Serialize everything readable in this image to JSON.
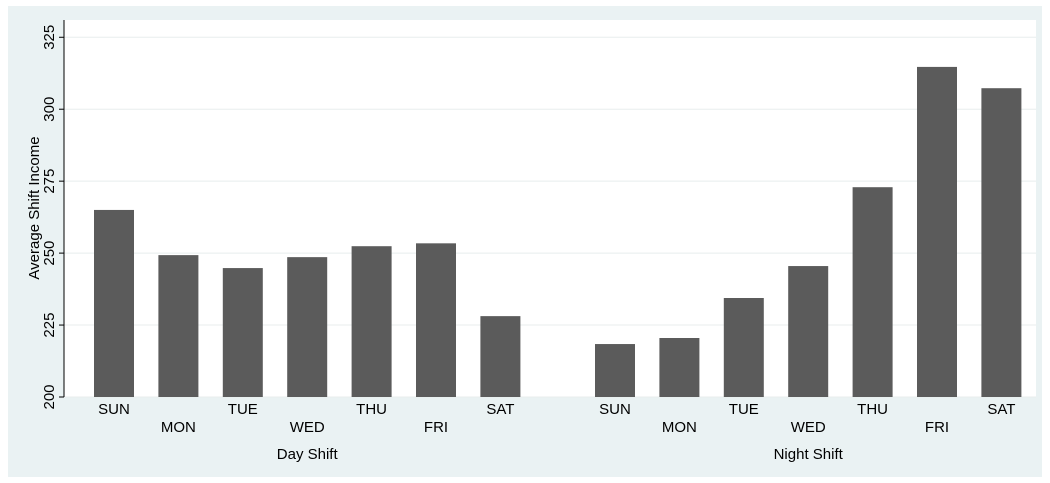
{
  "chart_data": {
    "type": "bar",
    "y_label": "Average Shift Income",
    "groups": [
      {
        "name": "Day Shift",
        "categories": [
          "SUN",
          "MON",
          "TUE",
          "WED",
          "THU",
          "FRI",
          "SAT"
        ],
        "values": [
          265,
          249.3,
          244.8,
          248.6,
          252.4,
          253.4,
          228.1
        ]
      },
      {
        "name": "Night Shift",
        "categories": [
          "SUN",
          "MON",
          "TUE",
          "WED",
          "THU",
          "FRI",
          "SAT"
        ],
        "values": [
          218.4,
          220.5,
          234.4,
          245.5,
          272.9,
          314.7,
          307.3
        ]
      }
    ],
    "color": "#5b5b5b",
    "ylim": [
      200,
      331
    ],
    "yticks": [
      200,
      225,
      250,
      275,
      300,
      325
    ],
    "grid": true
  }
}
